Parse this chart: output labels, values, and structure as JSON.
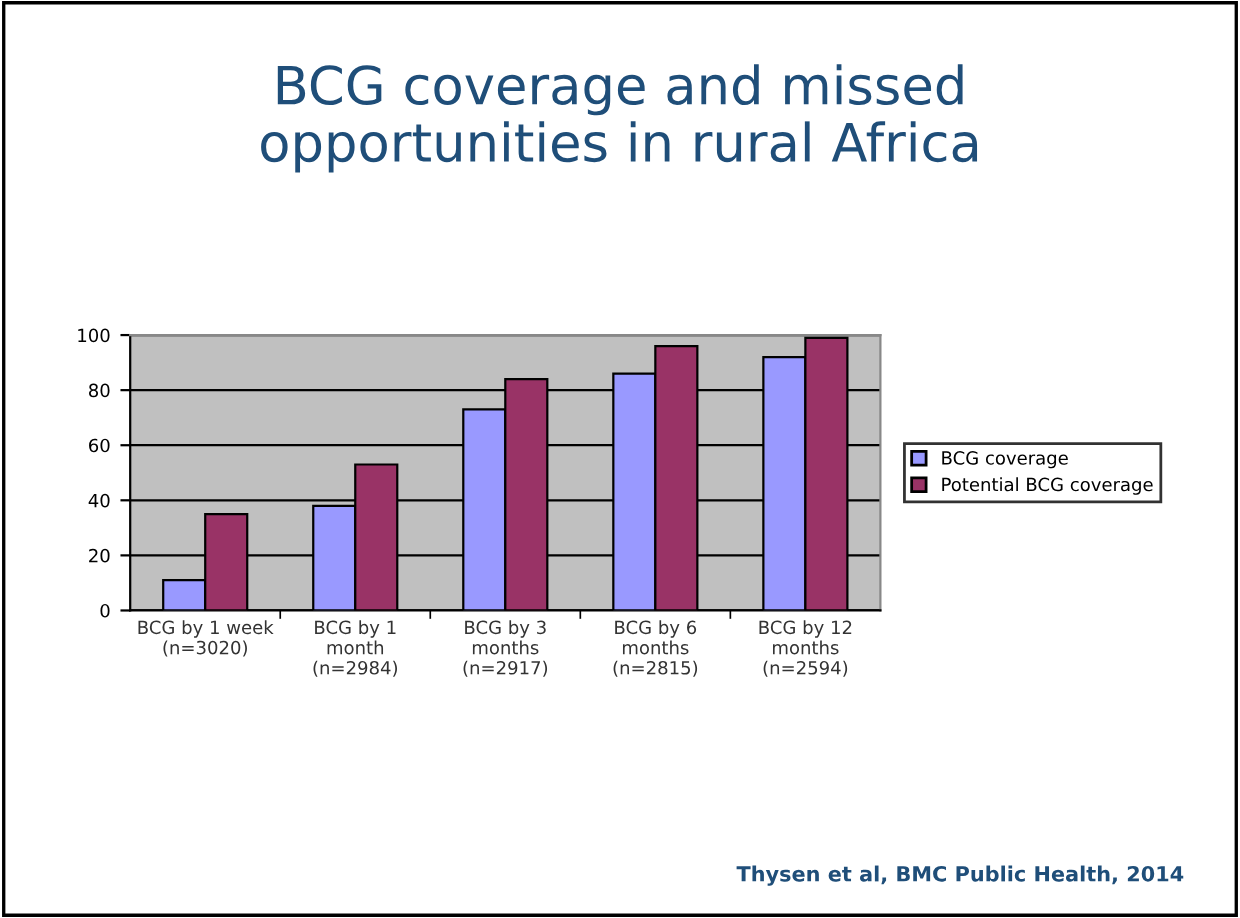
{
  "chart_data": {
    "type": "bar",
    "title": "BCG coverage and missed\nopportunities in rural Africa",
    "categories": [
      "BCG by 1 week\n(n=3020)",
      "BCG by 1\nmonth\n(n=2984)",
      "BCG by 3\nmonths\n(n=2917)",
      "BCG by 6\nmonths\n(n=2815)",
      "BCG by 12\nmonths\n(n=2594)"
    ],
    "series": [
      {
        "name": "BCG coverage",
        "color": "#9999ff",
        "values": [
          11,
          38,
          73,
          86,
          92
        ]
      },
      {
        "name": "Potential BCG coverage",
        "color": "#993366",
        "values": [
          35,
          53,
          84,
          96,
          99
        ]
      }
    ],
    "ylim": [
      0,
      100
    ],
    "yticks": [
      0,
      20,
      40,
      60,
      80,
      100
    ],
    "grid": "y",
    "legend": "right",
    "annotations": [
      "Thysen et al, BMC Public Health, 2014"
    ]
  }
}
